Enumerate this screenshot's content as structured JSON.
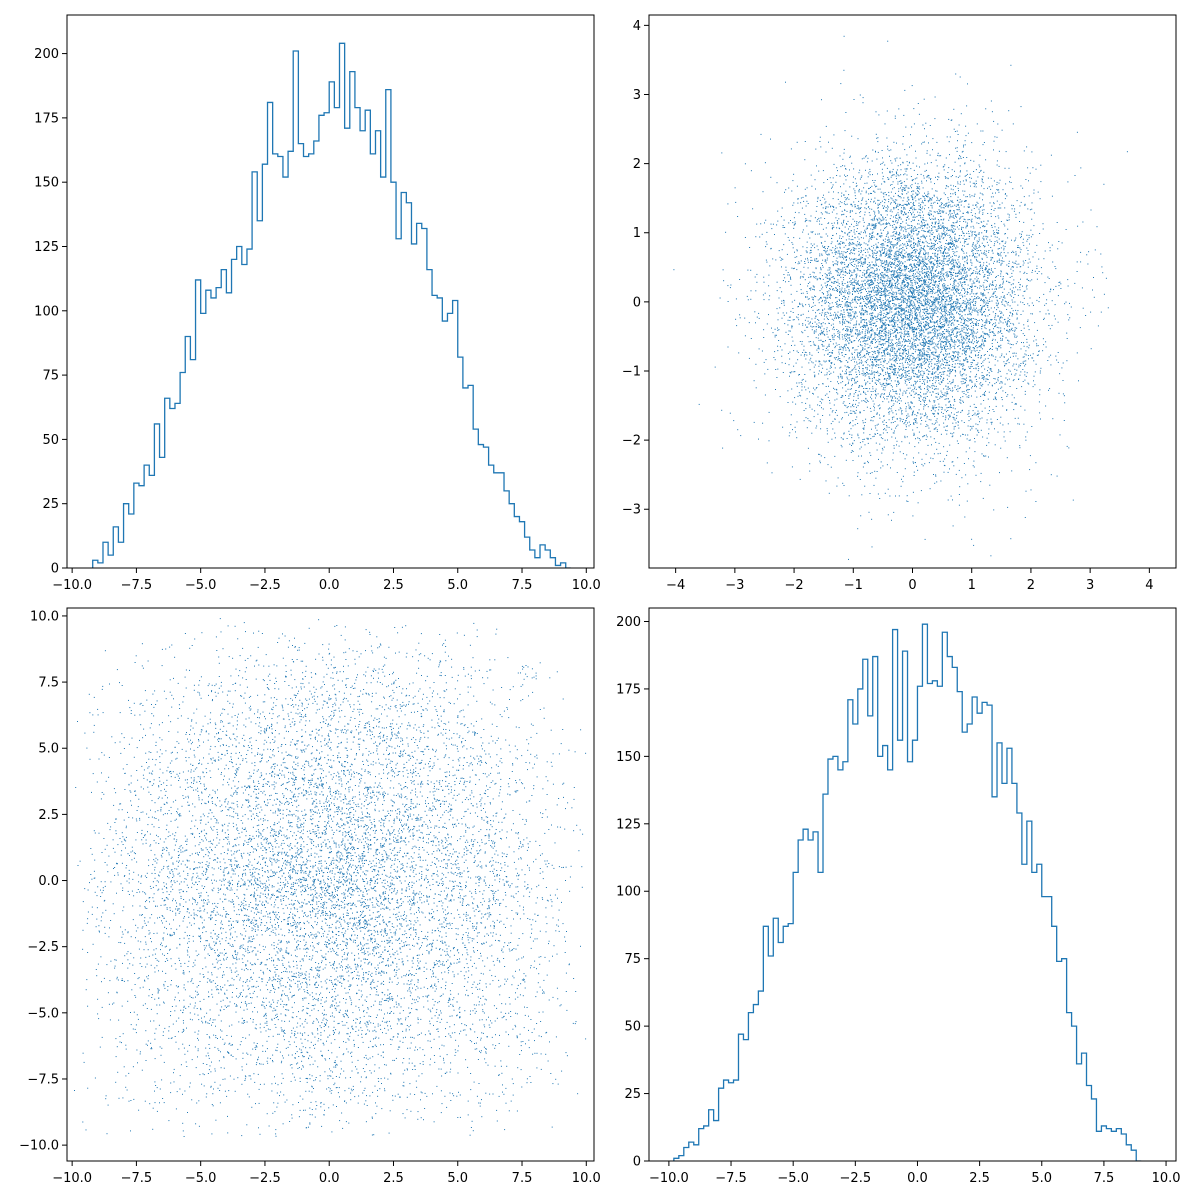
{
  "chart_data": [
    {
      "type": "histogram",
      "style": "step",
      "color": "#1f77b4",
      "xlim": [
        -10.2,
        10.3
      ],
      "ylim": [
        0,
        215
      ],
      "xticks": [
        -10.0,
        -7.5,
        -5.0,
        -2.5,
        0.0,
        2.5,
        5.0,
        7.5,
        10.0
      ],
      "yticks": [
        0,
        25,
        50,
        75,
        100,
        125,
        150,
        175,
        200
      ],
      "bin_start": -9.2,
      "bin_width": 0.2,
      "counts": [
        3,
        2,
        10,
        5,
        16,
        10,
        25,
        21,
        33,
        32,
        40,
        36,
        56,
        43,
        66,
        62,
        64,
        76,
        90,
        81,
        112,
        99,
        108,
        105,
        109,
        116,
        107,
        120,
        125,
        118,
        124,
        154,
        135,
        157,
        181,
        161,
        160,
        152,
        162,
        201,
        165,
        160,
        161,
        166,
        176,
        177,
        189,
        179,
        204,
        171,
        193,
        179,
        170,
        178,
        161,
        170,
        152,
        186,
        150,
        128,
        146,
        142,
        126,
        134,
        132,
        116,
        106,
        105,
        96,
        99,
        104,
        82,
        70,
        71,
        54,
        48,
        47,
        40,
        37,
        37,
        30,
        25,
        20,
        18,
        12,
        7,
        4,
        9,
        7,
        4,
        1,
        2,
        0
      ],
      "xlabel": "",
      "ylabel": ""
    },
    {
      "type": "scatter",
      "color": "#1f77b4",
      "marker": "pixel",
      "xlim": [
        -4.45,
        4.45
      ],
      "ylim": [
        -3.85,
        4.15
      ],
      "xticks": [
        -4,
        -3,
        -2,
        -1,
        0,
        1,
        2,
        3,
        4
      ],
      "yticks": [
        -3,
        -2,
        -1,
        0,
        1,
        2,
        3,
        4
      ],
      "n_points": 10000,
      "distribution": "standard normal in x and y"
    },
    {
      "type": "scatter",
      "color": "#1f77b4",
      "marker": "pixel",
      "xlim": [
        -10.2,
        10.3
      ],
      "ylim": [
        -10.6,
        10.3
      ],
      "xticks": [
        -10.0,
        -7.5,
        -5.0,
        -2.5,
        0.0,
        2.5,
        5.0,
        7.5,
        10.0
      ],
      "yticks": [
        -10.0,
        -7.5,
        -5.0,
        -2.5,
        0.0,
        2.5,
        5.0,
        7.5,
        10.0
      ],
      "n_points": 10000,
      "distribution": "triangular in x and y, range -10 to 10"
    },
    {
      "type": "histogram",
      "style": "step",
      "color": "#1f77b4",
      "xlim": [
        -10.8,
        10.4
      ],
      "ylim": [
        0,
        205
      ],
      "xticks": [
        -10.0,
        -7.5,
        -5.0,
        -2.5,
        0.0,
        2.5,
        5.0,
        7.5,
        10.0
      ],
      "yticks": [
        0,
        25,
        50,
        75,
        100,
        125,
        150,
        175,
        200
      ],
      "bin_start": -9.8,
      "bin_width": 0.2,
      "counts": [
        1,
        2,
        5,
        7,
        6,
        12,
        13,
        19,
        15,
        27,
        30,
        29,
        30,
        47,
        45,
        55,
        58,
        63,
        87,
        76,
        90,
        81,
        87,
        88,
        107,
        119,
        123,
        119,
        122,
        107,
        136,
        149,
        150,
        145,
        148,
        171,
        162,
        175,
        186,
        165,
        187,
        150,
        154,
        145,
        197,
        156,
        189,
        148,
        156,
        176,
        199,
        177,
        178,
        176,
        196,
        187,
        183,
        174,
        159,
        162,
        172,
        166,
        170,
        169,
        135,
        155,
        140,
        153,
        140,
        129,
        110,
        126,
        107,
        110,
        98,
        98,
        87,
        74,
        75,
        55,
        50,
        36,
        40,
        28,
        23,
        11,
        13,
        12,
        11,
        12,
        10,
        6,
        4,
        0
      ]
    }
  ]
}
